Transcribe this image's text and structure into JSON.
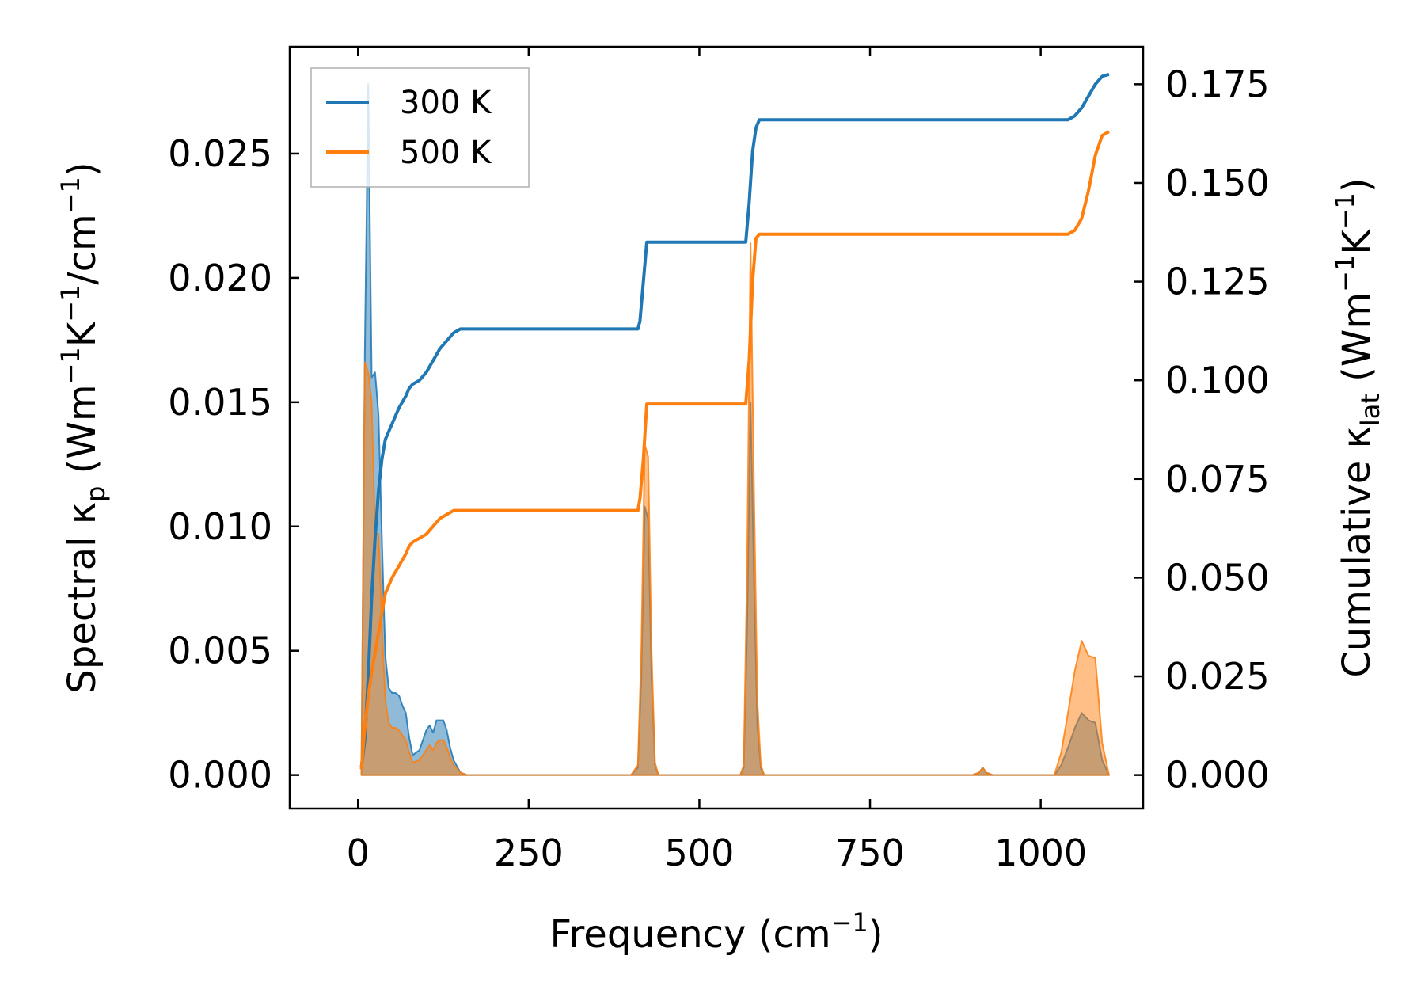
{
  "chart_data": {
    "type": "area",
    "xlabel": {
      "text": "Frequency (cm",
      "sup": "−1",
      "end": ")"
    },
    "ylabel_left": {
      "text": "Spectral κ",
      "sub": "p",
      "unit_a": " (Wm",
      "sup1": "−1",
      "unit_b": "K",
      "sup2": "−1",
      "unit_c": "/cm",
      "sup3": "−1",
      "unit_d": ")"
    },
    "ylabel_right": {
      "text": "Cumulative κ",
      "sub": "lat",
      "unit_a": " (Wm",
      "sup1": "−1",
      "unit_b": "K",
      "sup2": "−1",
      "unit_c": ")"
    },
    "xlim": [
      -100,
      1150
    ],
    "ylim_left": [
      -0.00135,
      0.0293
    ],
    "ylim_right": [
      -0.0085,
      0.1845
    ],
    "xticks": [
      0,
      250,
      500,
      750,
      1000
    ],
    "xtick_labels": [
      "0",
      "250",
      "500",
      "750",
      "1000"
    ],
    "yticks_left": [
      0,
      0.005,
      0.01,
      0.015,
      0.02,
      0.025
    ],
    "ytick_labels_left": [
      "0.000",
      "0.005",
      "0.010",
      "0.015",
      "0.020",
      "0.025"
    ],
    "yticks_right": [
      0,
      0.025,
      0.05,
      0.075,
      0.1,
      0.125,
      0.15,
      0.175
    ],
    "ytick_labels_right": [
      "0.000",
      "0.025",
      "0.050",
      "0.075",
      "0.100",
      "0.125",
      "0.150",
      "0.175"
    ],
    "legend": {
      "placement": "upper-left",
      "entries": [
        "300 K",
        "500 K"
      ]
    },
    "series": [
      {
        "name": "300 K",
        "color": "#1f77b4",
        "spectral_x": [
          5,
          10,
          15,
          20,
          25,
          30,
          35,
          40,
          45,
          50,
          55,
          60,
          65,
          70,
          75,
          80,
          90,
          100,
          105,
          110,
          115,
          120,
          125,
          130,
          135,
          140,
          150,
          160,
          400,
          410,
          415,
          420,
          425,
          430,
          435,
          440,
          560,
          565,
          570,
          575,
          580,
          585,
          590,
          595,
          900,
          910,
          915,
          920,
          930,
          1020,
          1030,
          1040,
          1050,
          1060,
          1070,
          1080,
          1090,
          1100
        ],
        "spectral_y": [
          0.0,
          0.017,
          0.0278,
          0.016,
          0.0162,
          0.0145,
          0.0095,
          0.0048,
          0.0035,
          0.0033,
          0.0033,
          0.0032,
          0.0028,
          0.0025,
          0.0015,
          0.0008,
          0.001,
          0.0018,
          0.002,
          0.0017,
          0.0022,
          0.0022,
          0.0022,
          0.0018,
          0.0011,
          0.0006,
          0.0001,
          0.0,
          0.0,
          0.0003,
          0.004,
          0.0108,
          0.0103,
          0.004,
          0.0004,
          0.0,
          0.0,
          0.0003,
          0.006,
          0.015,
          0.008,
          0.002,
          0.0003,
          0.0,
          0.0,
          0.0001,
          0.0003,
          0.0001,
          0.0,
          0.0,
          0.0004,
          0.0011,
          0.0019,
          0.0025,
          0.0022,
          0.0021,
          0.0006,
          0.0
        ],
        "cumulative_x": [
          5,
          10,
          15,
          20,
          25,
          30,
          35,
          40,
          50,
          60,
          70,
          75,
          80,
          90,
          100,
          110,
          120,
          130,
          140,
          150,
          200,
          300,
          410,
          413,
          418,
          423,
          428,
          435,
          450,
          560,
          568,
          573,
          578,
          583,
          588,
          595,
          700,
          900,
          920,
          1000,
          1030,
          1040,
          1050,
          1060,
          1070,
          1080,
          1090,
          1100
        ],
        "cumulative_y": [
          0.002,
          0.009,
          0.025,
          0.045,
          0.06,
          0.072,
          0.08,
          0.085,
          0.089,
          0.093,
          0.096,
          0.098,
          0.099,
          0.1,
          0.102,
          0.105,
          0.108,
          0.11,
          0.112,
          0.113,
          0.113,
          0.113,
          0.113,
          0.115,
          0.125,
          0.135,
          0.135,
          0.135,
          0.135,
          0.135,
          0.135,
          0.145,
          0.158,
          0.164,
          0.166,
          0.166,
          0.166,
          0.166,
          0.166,
          0.166,
          0.166,
          0.166,
          0.167,
          0.169,
          0.172,
          0.175,
          0.177,
          0.1775
        ]
      },
      {
        "name": "500 K",
        "color": "#ff7f0e",
        "spectral_x": [
          5,
          10,
          15,
          20,
          25,
          30,
          35,
          40,
          45,
          50,
          55,
          60,
          65,
          70,
          75,
          80,
          90,
          100,
          105,
          110,
          115,
          120,
          125,
          130,
          135,
          140,
          150,
          160,
          400,
          410,
          415,
          420,
          425,
          430,
          435,
          440,
          560,
          565,
          570,
          575,
          580,
          585,
          590,
          595,
          900,
          910,
          915,
          920,
          930,
          1020,
          1030,
          1040,
          1050,
          1060,
          1070,
          1080,
          1090,
          1100
        ],
        "spectral_y": [
          0.0,
          0.0166,
          0.0162,
          0.015,
          0.0097,
          0.0097,
          0.006,
          0.003,
          0.0021,
          0.0019,
          0.0019,
          0.0018,
          0.0016,
          0.0014,
          0.0009,
          0.0005,
          0.0006,
          0.001,
          0.0012,
          0.001,
          0.0013,
          0.0014,
          0.0014,
          0.0011,
          0.0007,
          0.0004,
          0.0001,
          0.0,
          0.0,
          0.0004,
          0.005,
          0.0133,
          0.0128,
          0.005,
          0.0005,
          0.0,
          0.0,
          0.0004,
          0.0085,
          0.0214,
          0.0115,
          0.003,
          0.0004,
          0.0,
          0.0,
          0.0001,
          0.0003,
          0.0001,
          0.0,
          0.0,
          0.0009,
          0.0025,
          0.0042,
          0.0054,
          0.0048,
          0.0047,
          0.0013,
          0.0
        ],
        "cumulative_x": [
          5,
          10,
          15,
          20,
          25,
          30,
          35,
          40,
          50,
          60,
          70,
          75,
          80,
          90,
          100,
          110,
          120,
          130,
          140,
          150,
          200,
          300,
          410,
          413,
          418,
          423,
          428,
          435,
          450,
          560,
          568,
          573,
          578,
          583,
          588,
          595,
          700,
          900,
          920,
          1000,
          1030,
          1040,
          1050,
          1060,
          1070,
          1080,
          1090,
          1100
        ],
        "cumulative_y": [
          0.0015,
          0.012,
          0.02,
          0.026,
          0.031,
          0.036,
          0.041,
          0.046,
          0.05,
          0.053,
          0.056,
          0.058,
          0.059,
          0.06,
          0.061,
          0.063,
          0.065,
          0.066,
          0.067,
          0.067,
          0.067,
          0.067,
          0.067,
          0.07,
          0.08,
          0.094,
          0.094,
          0.094,
          0.094,
          0.094,
          0.094,
          0.105,
          0.125,
          0.136,
          0.137,
          0.137,
          0.137,
          0.137,
          0.137,
          0.137,
          0.137,
          0.137,
          0.138,
          0.141,
          0.148,
          0.157,
          0.162,
          0.163
        ]
      }
    ]
  }
}
